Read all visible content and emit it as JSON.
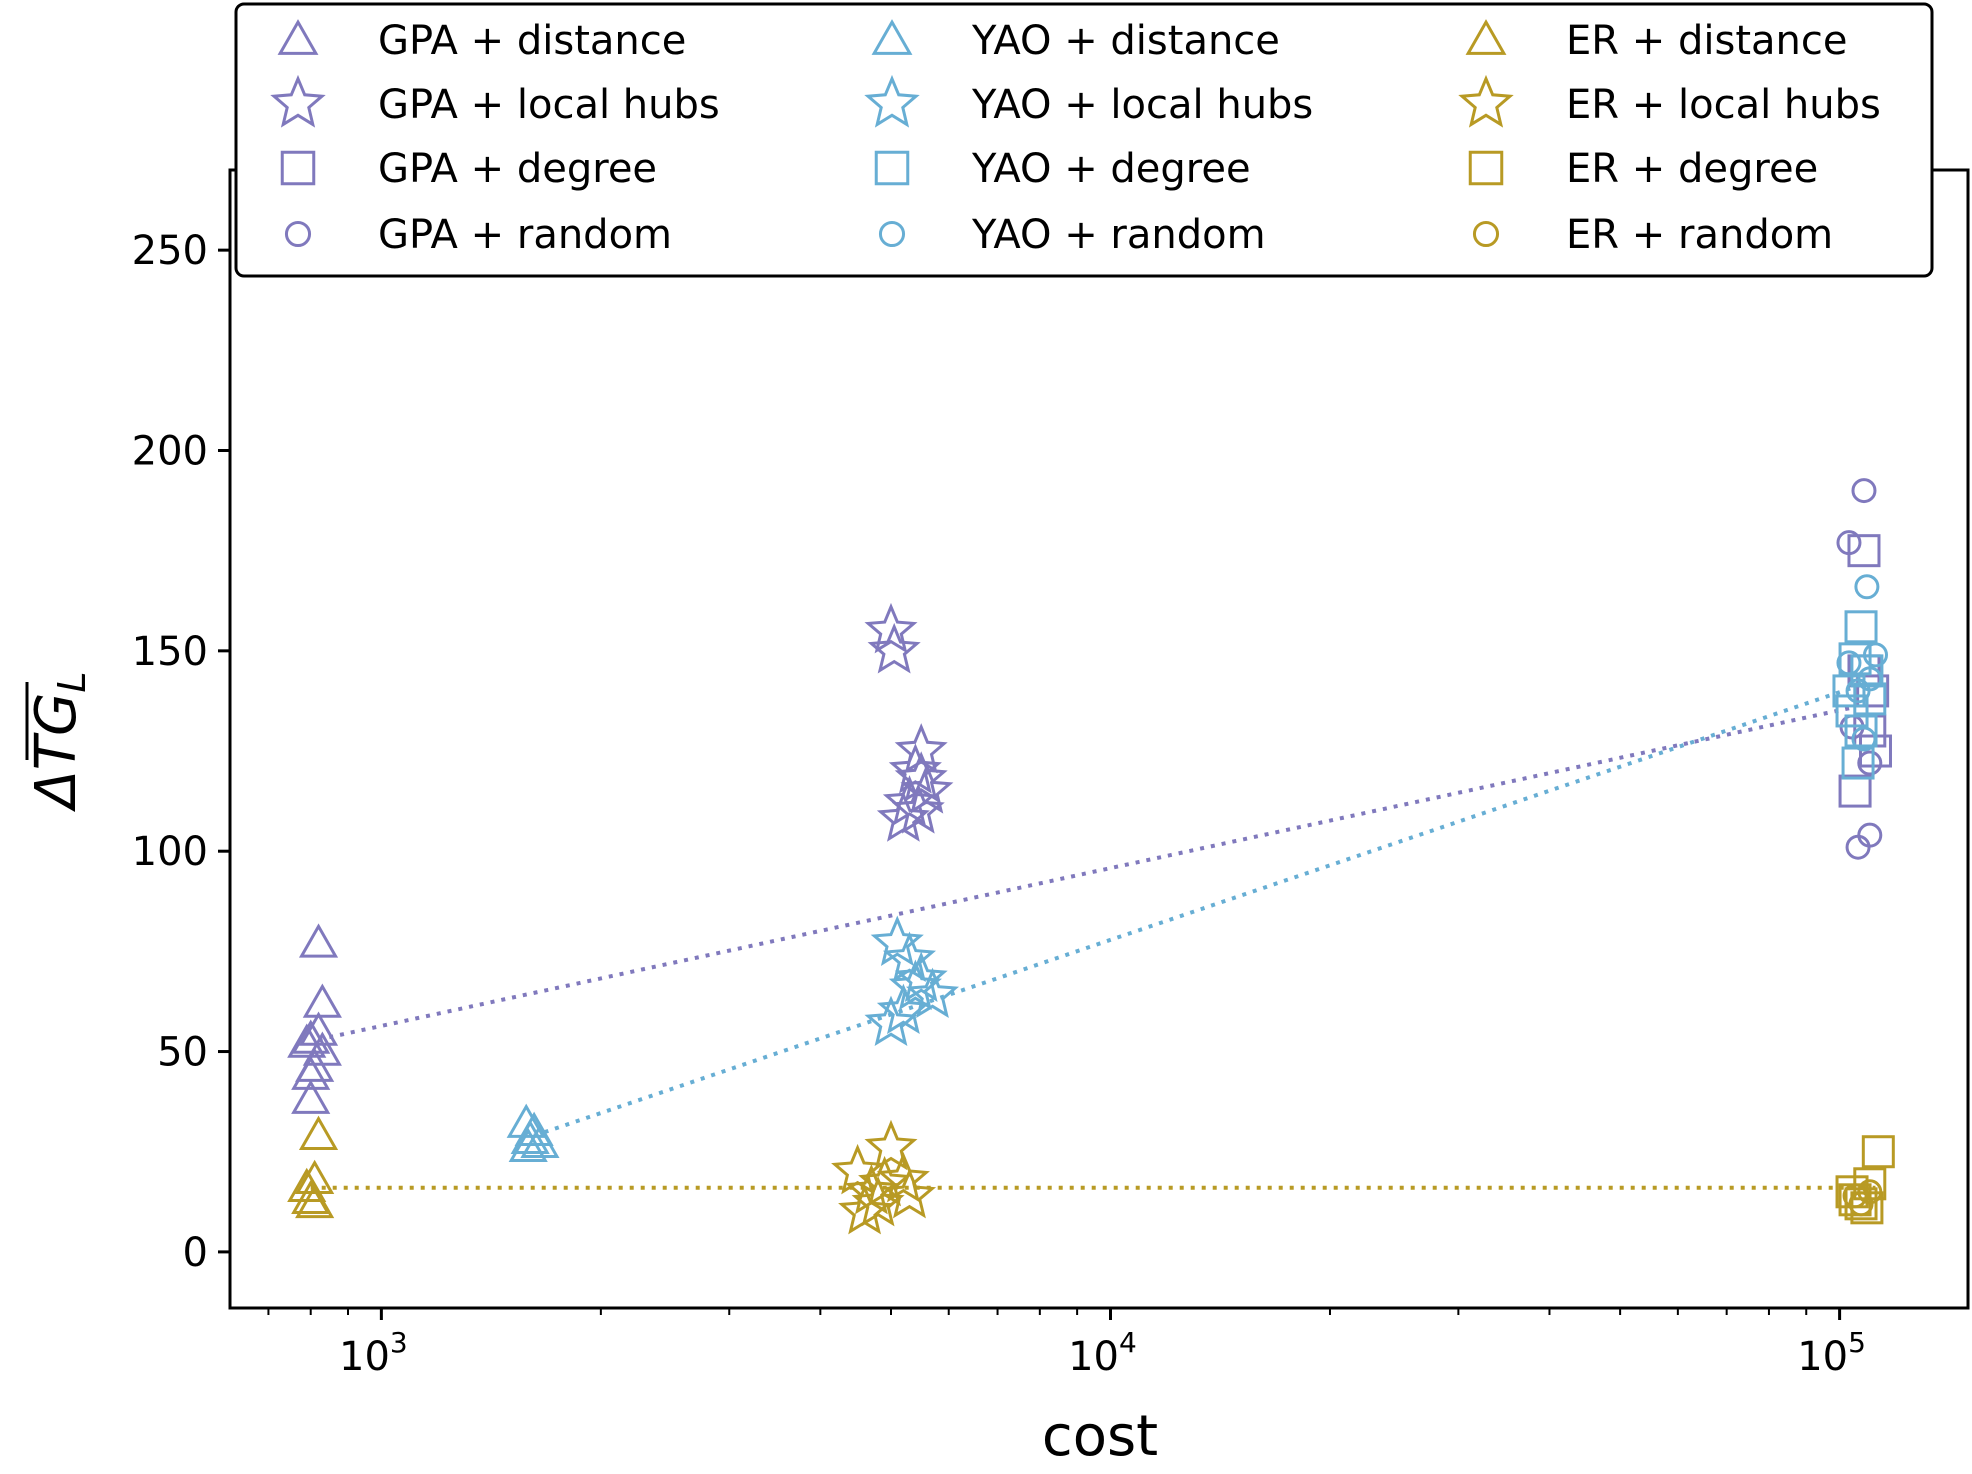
{
  "chart_data": {
    "type": "scatter",
    "xlabel": "cost",
    "ylabel_main": "ΔTG",
    "ylabel_sub": "L",
    "xscale": "log",
    "xlim": [
      620,
      150000
    ],
    "ylim": [
      -14,
      270
    ],
    "x_ticks": [
      {
        "value": 1000,
        "base": "10",
        "exp": "3"
      },
      {
        "value": 10000,
        "base": "10",
        "exp": "4"
      },
      {
        "value": 100000,
        "base": "10",
        "exp": "5"
      }
    ],
    "y_ticks": [
      0,
      50,
      100,
      150,
      200,
      250
    ],
    "legend": {
      "placement": "top",
      "columns": 3
    },
    "colors": {
      "GPA": "#8079bd",
      "YAO": "#67aed4",
      "ER": "#b89a24"
    },
    "series": [
      {
        "name": "GPA + distance",
        "group": "GPA",
        "marker": "triangle",
        "points": [
          [
            800,
            53
          ],
          [
            810,
            46
          ],
          [
            800,
            44
          ],
          [
            800,
            38
          ],
          [
            820,
            77
          ],
          [
            830,
            62
          ],
          [
            820,
            55
          ],
          [
            830,
            50
          ],
          [
            790,
            52
          ]
        ]
      },
      {
        "name": "GPA + local hubs",
        "group": "GPA",
        "marker": "star",
        "points": [
          [
            5000,
            155
          ],
          [
            5050,
            150
          ],
          [
            5500,
            125
          ],
          [
            5400,
            120
          ],
          [
            5500,
            118
          ],
          [
            5600,
            115
          ],
          [
            5300,
            112
          ],
          [
            5200,
            108
          ],
          [
            5450,
            110
          ]
        ]
      },
      {
        "name": "GPA + degree",
        "group": "GPA",
        "marker": "square",
        "points": [
          [
            108000,
            175
          ],
          [
            110000,
            130
          ],
          [
            112000,
            125
          ],
          [
            105000,
            115
          ],
          [
            108000,
            145
          ],
          [
            111000,
            140
          ]
        ]
      },
      {
        "name": "GPA + random",
        "group": "GPA",
        "marker": "circle",
        "points": [
          [
            108000,
            190
          ],
          [
            103000,
            177
          ],
          [
            110000,
            122
          ],
          [
            110000,
            104
          ],
          [
            106000,
            101
          ],
          [
            104000,
            131
          ]
        ]
      },
      {
        "name": "YAO + distance",
        "group": "YAO",
        "marker": "triangle",
        "points": [
          [
            1580,
            32
          ],
          [
            1600,
            28
          ],
          [
            1650,
            27
          ],
          [
            1620,
            30
          ],
          [
            1590,
            26
          ]
        ]
      },
      {
        "name": "YAO + local hubs",
        "group": "YAO",
        "marker": "star",
        "points": [
          [
            5100,
            77
          ],
          [
            5300,
            73
          ],
          [
            5500,
            68
          ],
          [
            5700,
            64
          ],
          [
            5200,
            60
          ],
          [
            5000,
            57
          ],
          [
            5400,
            66
          ]
        ]
      },
      {
        "name": "YAO + degree",
        "group": "YAO",
        "marker": "square",
        "points": [
          [
            107000,
            156
          ],
          [
            105000,
            148
          ],
          [
            103000,
            140
          ],
          [
            110000,
            138
          ],
          [
            107000,
            130
          ],
          [
            106000,
            122
          ],
          [
            109000,
            145
          ],
          [
            104000,
            135
          ]
        ]
      },
      {
        "name": "YAO + random",
        "group": "YAO",
        "marker": "circle",
        "points": [
          [
            109000,
            166
          ],
          [
            103000,
            147
          ],
          [
            110000,
            143
          ],
          [
            108000,
            128
          ],
          [
            112000,
            149
          ],
          [
            106000,
            140
          ]
        ]
      },
      {
        "name": "ER + distance",
        "group": "ER",
        "marker": "triangle",
        "points": [
          [
            820,
            29
          ],
          [
            810,
            18
          ],
          [
            790,
            16
          ],
          [
            800,
            13
          ],
          [
            810,
            12
          ]
        ]
      },
      {
        "name": "ER + local hubs",
        "group": "ER",
        "marker": "star",
        "points": [
          [
            4500,
            20
          ],
          [
            4700,
            15
          ],
          [
            4800,
            12
          ],
          [
            5000,
            26
          ],
          [
            5200,
            18
          ],
          [
            5300,
            14
          ],
          [
            4600,
            10
          ],
          [
            4900,
            17
          ]
        ]
      },
      {
        "name": "ER + degree",
        "group": "ER",
        "marker": "square",
        "points": [
          [
            113000,
            25
          ],
          [
            110000,
            17
          ],
          [
            104000,
            15
          ],
          [
            107000,
            12
          ],
          [
            109000,
            11
          ],
          [
            105000,
            13
          ]
        ]
      },
      {
        "name": "ER + random",
        "group": "ER",
        "marker": "circle",
        "points": [
          [
            110000,
            15
          ],
          [
            107000,
            12
          ],
          [
            105000,
            14
          ]
        ]
      }
    ],
    "trend_lines": [
      {
        "group": "GPA",
        "points": [
          [
            820,
            53
          ],
          [
            105000,
            136
          ]
        ]
      },
      {
        "group": "YAO",
        "points": [
          [
            1620,
            29
          ],
          [
            105000,
            141
          ]
        ]
      },
      {
        "group": "ER",
        "points": [
          [
            800,
            16
          ],
          [
            112000,
            16
          ]
        ]
      }
    ]
  }
}
